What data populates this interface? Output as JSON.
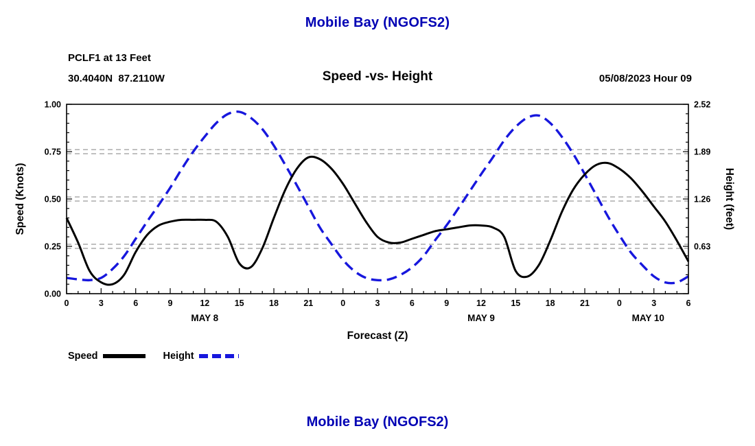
{
  "header": {
    "title": "Mobile Bay (NGOFS2)",
    "station_line1": "PCLF1 at 13 Feet",
    "station_line2": "30.4040N  87.2110W",
    "subtitle": "Speed -vs- Height",
    "forecast_time": "05/08/2023 Hour 09"
  },
  "footer": {
    "title": "Mobile Bay (NGOFS2)"
  },
  "axes": {
    "left_label": "Speed (Knots)",
    "right_label": "Height (feet)",
    "x_label": "Forecast (Z)",
    "left_ticks": [
      {
        "value": 0.0,
        "label": "0.00"
      },
      {
        "value": 0.25,
        "label": "0.25"
      },
      {
        "value": 0.5,
        "label": "0.50"
      },
      {
        "value": 0.75,
        "label": "0.75"
      },
      {
        "value": 1.0,
        "label": "1.00"
      }
    ],
    "right_ticks": [
      {
        "value": 0.63,
        "label": "0.63"
      },
      {
        "value": 1.26,
        "label": "1.26"
      },
      {
        "value": 1.89,
        "label": "1.89"
      },
      {
        "value": 2.52,
        "label": "2.52"
      }
    ],
    "x_major_step": 3,
    "x_tick_labels": [
      "0",
      "3",
      "6",
      "9",
      "12",
      "15",
      "18",
      "21",
      "0",
      "3",
      "6",
      "9",
      "12",
      "15",
      "18",
      "21",
      "0",
      "3",
      "6"
    ],
    "day_labels": [
      {
        "label": "MAY 8",
        "hour": 12
      },
      {
        "label": "MAY 9",
        "hour": 36
      },
      {
        "label": "MAY 10",
        "hour": 50.5
      }
    ],
    "grid_levels": [
      0.25,
      0.5,
      0.75
    ]
  },
  "legend": {
    "items": [
      {
        "label": "Speed",
        "style": "solid"
      },
      {
        "label": "Height",
        "style": "dashed"
      }
    ]
  },
  "colors": {
    "title": "#0000b4",
    "speed": "#000000",
    "height": "#1717dd",
    "grid": "#808080",
    "axis": "#000000"
  },
  "chart_data": {
    "type": "line",
    "title": "Mobile Bay (NGOFS2)",
    "subtitle": "Speed -vs- Height",
    "station": "PCLF1 at 13 Feet",
    "location": "30.4040N 87.2110W",
    "forecast_issued": "05/08/2023 Hour 09",
    "xlabel": "Forecast (Z)",
    "x_unit": "hours (Z), starting 2023-05-08 00Z",
    "x_start": 0,
    "x_step": 1,
    "xlim": [
      0,
      54
    ],
    "grid": "dashed horizontal at 0.25/0.50/0.75 knots",
    "legend_position": "bottom-left",
    "series": [
      {
        "name": "Speed",
        "axis": "left",
        "units": "Knots",
        "ylim": [
          0,
          1.0
        ],
        "color_key": "speed",
        "dashed": false,
        "values": [
          0.4,
          0.27,
          0.12,
          0.06,
          0.05,
          0.1,
          0.22,
          0.31,
          0.36,
          0.38,
          0.39,
          0.39,
          0.39,
          0.38,
          0.3,
          0.16,
          0.14,
          0.24,
          0.4,
          0.55,
          0.66,
          0.72,
          0.71,
          0.66,
          0.58,
          0.48,
          0.38,
          0.3,
          0.27,
          0.27,
          0.29,
          0.31,
          0.33,
          0.34,
          0.35,
          0.36,
          0.36,
          0.35,
          0.3,
          0.12,
          0.09,
          0.15,
          0.28,
          0.43,
          0.55,
          0.63,
          0.68,
          0.69,
          0.66,
          0.61,
          0.54,
          0.46,
          0.38,
          0.28,
          0.17
        ]
      },
      {
        "name": "Height",
        "axis": "right",
        "units": "feet",
        "ylim": [
          0,
          2.52
        ],
        "color_key": "height",
        "dashed": true,
        "values": [
          0.21,
          0.19,
          0.18,
          0.21,
          0.33,
          0.5,
          0.73,
          0.96,
          1.18,
          1.41,
          1.66,
          1.89,
          2.09,
          2.27,
          2.39,
          2.42,
          2.34,
          2.19,
          1.97,
          1.71,
          1.44,
          1.16,
          0.88,
          0.66,
          0.45,
          0.3,
          0.21,
          0.18,
          0.19,
          0.25,
          0.35,
          0.5,
          0.71,
          0.91,
          1.13,
          1.36,
          1.59,
          1.81,
          2.04,
          2.22,
          2.34,
          2.37,
          2.27,
          2.09,
          1.86,
          1.59,
          1.31,
          1.03,
          0.78,
          0.55,
          0.38,
          0.23,
          0.15,
          0.15,
          0.23
        ]
      }
    ]
  }
}
